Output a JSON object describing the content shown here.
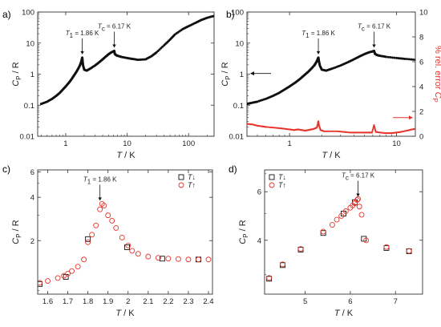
{
  "colors": {
    "black": "#111111",
    "red": "#e8332a",
    "frame": "#333333",
    "axis_text": "#222222"
  },
  "panel_labels": [
    "a)",
    "b)",
    "c)",
    "d)"
  ],
  "chart_data": [
    {
      "id": "a",
      "type": "scatter",
      "xscale": "log",
      "yscale": "log",
      "xlim": [
        0.35,
        260
      ],
      "ylim": [
        0.01,
        100
      ],
      "xticks": [
        1,
        10,
        100
      ],
      "xtick_labels": [
        "1",
        "10",
        "100"
      ],
      "yticks": [
        0.01,
        0.1,
        1,
        10,
        100
      ],
      "ytick_labels": [
        "0.01",
        "0.1",
        "1",
        "10",
        "100"
      ],
      "xlabel": "T / K",
      "ylabel": "CP / R",
      "annotations": [
        {
          "text": "T1 = 1.86 K",
          "x": 1.86,
          "y": 3.4
        },
        {
          "text": "Tc = 6.17 K",
          "x": 6.17,
          "y": 5.6
        }
      ],
      "series": [
        {
          "color": "black",
          "marker": "filled-dot",
          "style": "dense",
          "x": [
            0.4,
            0.5,
            0.6,
            0.7,
            0.8,
            0.9,
            1.0,
            1.1,
            1.2,
            1.3,
            1.4,
            1.5,
            1.6,
            1.7,
            1.75,
            1.8,
            1.84,
            1.86,
            1.88,
            1.92,
            2.0,
            2.2,
            2.5,
            3.0,
            3.5,
            4.0,
            4.5,
            5.0,
            5.5,
            6.0,
            6.17,
            6.3,
            6.6,
            7.0,
            8.0,
            10,
            12,
            15,
            20,
            25,
            30,
            40,
            50,
            60,
            80,
            100,
            130,
            160,
            200,
            260
          ],
          "y": [
            0.11,
            0.13,
            0.16,
            0.2,
            0.25,
            0.32,
            0.4,
            0.5,
            0.62,
            0.78,
            0.98,
            1.2,
            1.5,
            1.9,
            2.2,
            2.6,
            3.1,
            3.4,
            2.7,
            1.9,
            1.4,
            1.3,
            1.5,
            1.9,
            2.4,
            3.0,
            3.7,
            4.4,
            5.0,
            5.4,
            5.6,
            4.5,
            4.1,
            3.9,
            3.6,
            3.3,
            3.1,
            2.9,
            3.0,
            3.8,
            5.0,
            8.5,
            13,
            19,
            28,
            35,
            45,
            55,
            65,
            75
          ]
        }
      ]
    },
    {
      "id": "b",
      "type": "scatter",
      "xscale": "log",
      "yscale": "log",
      "xlim": [
        0.4,
        15
      ],
      "ylim": [
        0.01,
        100
      ],
      "xticks": [
        1,
        10
      ],
      "xtick_labels": [
        "1",
        "10"
      ],
      "yticks": [
        0.01,
        0.1,
        1,
        10,
        100
      ],
      "ytick_labels": [
        "0.01",
        "0.1",
        "1",
        "10",
        "100"
      ],
      "y2lim": [
        0,
        10
      ],
      "y2ticks": [
        0,
        2,
        4,
        6,
        8,
        10
      ],
      "y2tick_labels": [
        "0",
        "2",
        "4",
        "6",
        "8",
        "10"
      ],
      "xlabel": "T / K",
      "ylabel": "CP / R",
      "y2label": "% rel. error CP",
      "annotations": [
        {
          "text": "T1 = 1.86 K",
          "x": 1.86,
          "y": 3.4
        },
        {
          "text": "Tc = 6.17 K",
          "x": 6.17,
          "y": 5.6
        }
      ],
      "series": [
        {
          "color": "black",
          "marker": "filled-dot",
          "axis": "left",
          "style": "dense",
          "x": [
            0.4,
            0.45,
            0.5,
            0.6,
            0.7,
            0.8,
            0.9,
            1.0,
            1.1,
            1.2,
            1.3,
            1.4,
            1.5,
            1.6,
            1.7,
            1.75,
            1.8,
            1.84,
            1.86,
            1.88,
            1.92,
            2.0,
            2.2,
            2.5,
            3.0,
            3.5,
            4.0,
            4.5,
            5.0,
            5.5,
            6.0,
            6.17,
            6.3,
            6.6,
            7.0,
            8.0,
            10,
            12,
            15
          ],
          "y": [
            0.11,
            0.12,
            0.13,
            0.16,
            0.2,
            0.25,
            0.32,
            0.4,
            0.5,
            0.62,
            0.78,
            0.98,
            1.2,
            1.5,
            1.9,
            2.2,
            2.6,
            3.1,
            3.4,
            2.7,
            1.9,
            1.4,
            1.3,
            1.5,
            1.9,
            2.4,
            3.0,
            3.7,
            4.4,
            5.0,
            5.4,
            5.6,
            4.5,
            4.1,
            3.9,
            3.6,
            3.3,
            3.1,
            2.9
          ]
        },
        {
          "color": "red",
          "marker": "small-dot",
          "axis": "right",
          "style": "dense",
          "x": [
            0.4,
            0.45,
            0.5,
            0.55,
            0.6,
            0.7,
            0.8,
            0.9,
            1.0,
            1.1,
            1.2,
            1.3,
            1.4,
            1.5,
            1.6,
            1.7,
            1.8,
            1.84,
            1.86,
            1.88,
            1.95,
            2.1,
            2.4,
            2.8,
            3.2,
            3.7,
            4.2,
            4.8,
            5.4,
            5.9,
            6.17,
            6.4,
            7.0,
            8.0,
            9.0,
            10,
            11,
            12.5,
            14,
            15
          ],
          "y": [
            1.0,
            0.95,
            0.85,
            0.8,
            0.75,
            0.7,
            0.65,
            0.6,
            0.55,
            0.5,
            0.55,
            0.5,
            0.45,
            0.5,
            0.55,
            0.6,
            0.7,
            1.0,
            1.2,
            0.9,
            0.5,
            0.4,
            0.4,
            0.4,
            0.35,
            0.3,
            0.3,
            0.3,
            0.3,
            0.3,
            0.9,
            0.35,
            0.3,
            0.25,
            0.25,
            0.3,
            0.35,
            0.45,
            0.55,
            0.6
          ]
        }
      ]
    },
    {
      "id": "c",
      "type": "scatter",
      "xscale": "linear",
      "yscale": "log",
      "xlim": [
        1.55,
        2.42
      ],
      "ylim": [
        0.85,
        6.2
      ],
      "xticks": [
        1.6,
        1.7,
        1.8,
        1.9,
        2.0,
        2.1,
        2.2,
        2.3,
        2.4
      ],
      "xtick_labels": [
        "1.6",
        "1.7",
        "1.8",
        "1.9",
        "2",
        "2.1",
        "2.2",
        "2.3",
        "2.4"
      ],
      "yticks": [
        2,
        4,
        6
      ],
      "ytick_labels": [
        "2",
        "4",
        "6"
      ],
      "xlabel": "T / K",
      "ylabel": "CP / R",
      "legend": {
        "position": "top-right",
        "entries": [
          "T↓",
          "T↑"
        ]
      },
      "annotations": [
        {
          "text": "T1 = 1.86 K",
          "x": 1.86,
          "y": 3.6
        }
      ],
      "series": [
        {
          "name": "T↓",
          "color": "black",
          "marker": "open-square",
          "x": [
            1.56,
            1.69,
            1.8,
            1.995,
            2.17,
            2.35
          ],
          "y": [
            1.0,
            1.12,
            2.05,
            1.8,
            1.5,
            1.48
          ]
        },
        {
          "name": "T↑",
          "color": "red",
          "marker": "open-circle",
          "x": [
            1.56,
            1.6,
            1.65,
            1.68,
            1.7,
            1.72,
            1.75,
            1.78,
            1.8,
            1.82,
            1.84,
            1.86,
            1.87,
            1.88,
            1.9,
            1.92,
            1.94,
            1.97,
            2.0,
            2.02,
            2.05,
            2.1,
            2.15,
            2.2,
            2.25,
            2.3,
            2.35,
            2.4
          ],
          "y": [
            1.02,
            1.05,
            1.1,
            1.14,
            1.18,
            1.23,
            1.32,
            1.48,
            1.95,
            2.2,
            2.55,
            3.3,
            3.6,
            3.5,
            3.0,
            2.75,
            2.45,
            2.1,
            1.85,
            1.7,
            1.62,
            1.55,
            1.52,
            1.5,
            1.49,
            1.48,
            1.48,
            1.48
          ]
        }
      ]
    },
    {
      "id": "d",
      "type": "scatter",
      "xscale": "linear",
      "yscale": "log",
      "xlim": [
        4.1,
        7.6
      ],
      "ylim": [
        2.55,
        7.2
      ],
      "xticks": [
        5,
        6,
        7
      ],
      "xtick_labels": [
        "5",
        "6",
        "7"
      ],
      "yticks": [
        4,
        6
      ],
      "ytick_labels": [
        "4",
        "6"
      ],
      "xlabel": "T / K",
      "ylabel": "CP / R",
      "legend": {
        "position": "top-left",
        "entries": [
          "T↓",
          "T↑"
        ]
      },
      "annotations": [
        {
          "text": "Tc = 6.17 K",
          "x": 6.17,
          "y": 5.6
        }
      ],
      "series": [
        {
          "name": "T↓",
          "color": "black",
          "marker": "open-square",
          "x": [
            4.2,
            4.5,
            4.9,
            5.4,
            5.85,
            6.1,
            6.3,
            6.8,
            7.3
          ],
          "y": [
            2.9,
            3.25,
            3.7,
            4.25,
            5.0,
            5.5,
            4.05,
            3.75,
            3.65
          ]
        },
        {
          "name": "T↑",
          "color": "red",
          "marker": "open-circle",
          "x": [
            4.2,
            4.5,
            4.9,
            5.4,
            5.6,
            5.7,
            5.8,
            5.9,
            6.0,
            6.05,
            6.1,
            6.15,
            6.17,
            6.2,
            6.25,
            6.35,
            6.8,
            7.3
          ],
          "y": [
            2.92,
            3.27,
            3.72,
            4.3,
            4.55,
            4.75,
            4.9,
            5.1,
            5.25,
            5.35,
            5.45,
            5.6,
            5.65,
            5.3,
            4.95,
            4.0,
            3.78,
            3.66
          ]
        }
      ]
    }
  ]
}
